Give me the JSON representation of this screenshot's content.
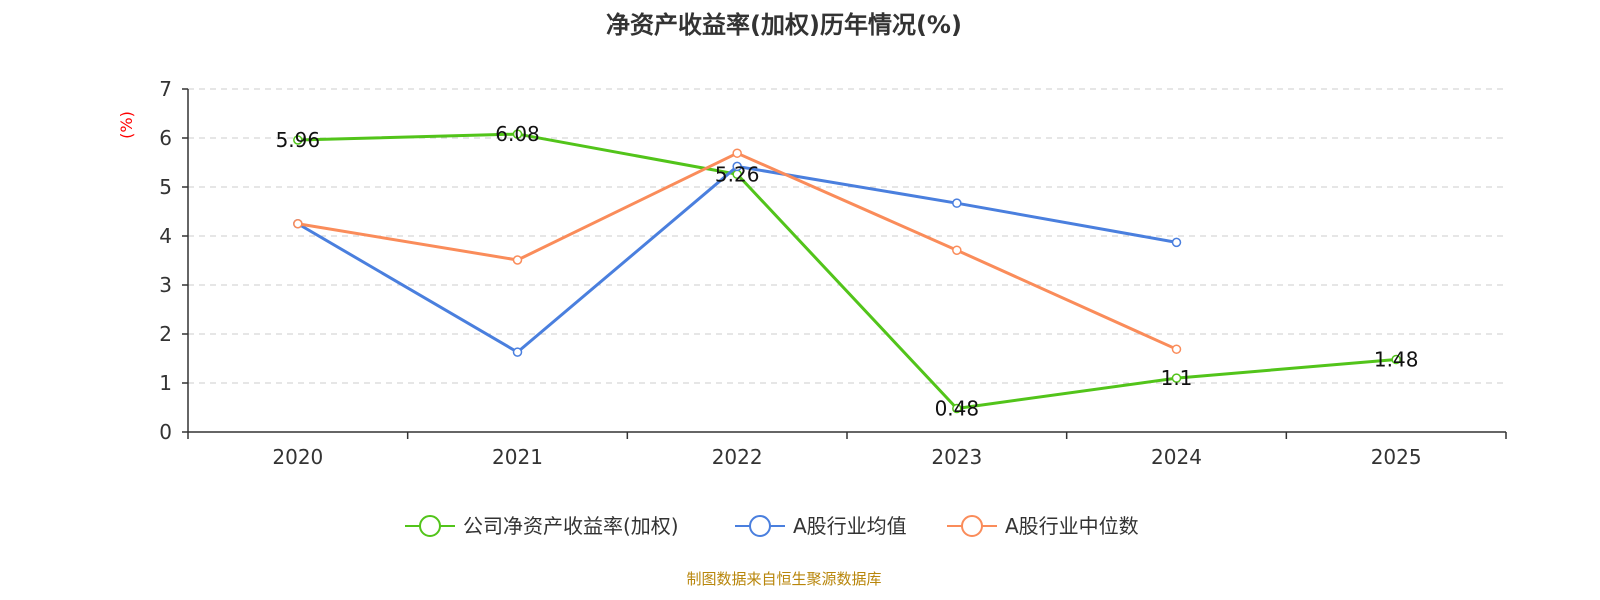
{
  "chart_data": {
    "type": "line",
    "title": "净资产收益率(加权)历年情况(%)",
    "ylabel": "(%)",
    "xlabel": "",
    "categories": [
      "2020",
      "2021",
      "2022",
      "2023",
      "2024",
      "2025"
    ],
    "ylim": [
      0,
      7
    ],
    "yticks": [
      0,
      1,
      2,
      3,
      4,
      5,
      6,
      7
    ],
    "grid": true,
    "legend_position": "bottom-center",
    "series": [
      {
        "name": "公司净资产收益率(加权)",
        "color": "#52c41a",
        "values": [
          5.96,
          6.08,
          5.26,
          0.48,
          1.1,
          1.48
        ],
        "labels": [
          "5.96",
          "6.08",
          "5.26",
          "0.48",
          "1.1",
          "1.48"
        ],
        "show_labels": true
      },
      {
        "name": "A股行业均值",
        "color": "#4a7fde",
        "values": [
          4.25,
          1.63,
          5.42,
          4.67,
          3.87,
          null
        ],
        "show_labels": false
      },
      {
        "name": "A股行业中位数",
        "color": "#fa8c5a",
        "values": [
          4.25,
          3.51,
          5.69,
          3.71,
          1.69,
          null
        ],
        "show_labels": false
      }
    ]
  },
  "source": "制图数据来自恒生聚源数据库"
}
